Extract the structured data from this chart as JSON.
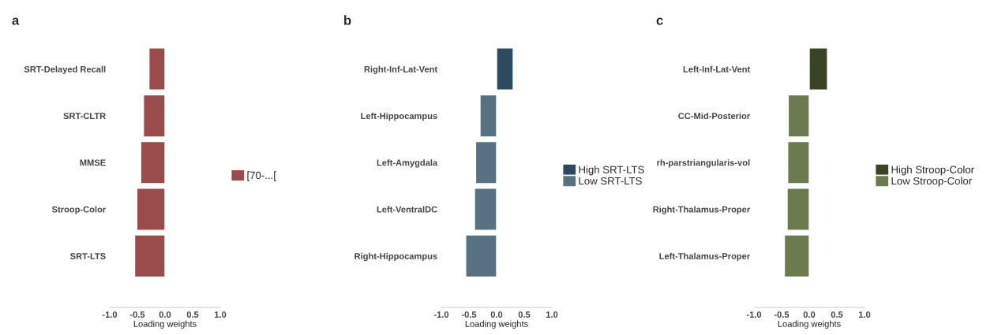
{
  "chart_data": [
    {
      "type": "bar",
      "orientation": "horizontal",
      "title": "a",
      "xlabel": "Loading weights",
      "categories": [
        "SRT-Delayed Recall",
        "SRT-CLTR",
        "MMSE",
        "Stroop-Color",
        "SRT-LTS"
      ],
      "xlim": [
        -1.0,
        1.0
      ],
      "xticks": [
        {
          "value": -1.0,
          "label": "-1.0"
        },
        {
          "value": -0.5,
          "label": "-0.5"
        },
        {
          "value": 0.0,
          "label": "0.0"
        },
        {
          "value": 0.5,
          "label": "0.5"
        },
        {
          "value": 1.0,
          "label": "1.0"
        }
      ],
      "grid": false,
      "legend": "right",
      "series": [
        {
          "name": "[70-...[",
          "color": "#9a4b4b",
          "values": [
            -0.29,
            -0.39,
            -0.44,
            -0.51,
            -0.55
          ]
        }
      ]
    },
    {
      "type": "bar",
      "orientation": "horizontal",
      "title": "b",
      "xlabel": "Loading weights",
      "categories": [
        "Right-Inf-Lat-Vent",
        "Left-Hippocampus",
        "Left-Amygdala",
        "Left-VentralDC",
        "Right-Hippocampus"
      ],
      "xlim": [
        -1.0,
        1.0
      ],
      "xticks": [
        {
          "value": -1.0,
          "label": "-1.0"
        },
        {
          "value": -0.5,
          "label": "-0.5"
        },
        {
          "value": 0.0,
          "label": "0.0"
        },
        {
          "value": 0.5,
          "label": "0.5"
        },
        {
          "value": 1.0,
          "label": "1.0"
        }
      ],
      "grid": false,
      "legend": "right",
      "series": [
        {
          "name": "High SRT-LTS",
          "color": "#2e4a5e",
          "values": [
            0.3,
            null,
            null,
            null,
            null
          ]
        },
        {
          "name": "Low SRT-LTS",
          "color": "#587284",
          "values": [
            null,
            -0.3,
            -0.38,
            -0.4,
            -0.56
          ]
        }
      ]
    },
    {
      "type": "bar",
      "orientation": "horizontal",
      "title": "c",
      "xlabel": "Loading weights",
      "categories": [
        "Left-Inf-Lat-Vent",
        "CC-Mid-Posterior",
        "rh-parstriangularis-vol",
        "Right-Thalamus-Proper",
        "Left-Thalamus-Proper"
      ],
      "xlim": [
        -1.0,
        1.0
      ],
      "xticks": [
        {
          "value": -1.0,
          "label": "-1.0"
        },
        {
          "value": -0.5,
          "label": "-0.5"
        },
        {
          "value": 0.0,
          "label": "0.0"
        },
        {
          "value": 0.5,
          "label": "0.5"
        },
        {
          "value": 1.0,
          "label": "1.0"
        }
      ],
      "grid": false,
      "legend": "right",
      "series": [
        {
          "name": "High Stroop-Color",
          "color": "#3a4424",
          "values": [
            0.33,
            null,
            null,
            null,
            null
          ]
        },
        {
          "name": "Low Stroop-Color",
          "color": "#6b7a4f",
          "values": [
            null,
            -0.38,
            -0.39,
            -0.4,
            -0.45
          ]
        }
      ]
    }
  ]
}
